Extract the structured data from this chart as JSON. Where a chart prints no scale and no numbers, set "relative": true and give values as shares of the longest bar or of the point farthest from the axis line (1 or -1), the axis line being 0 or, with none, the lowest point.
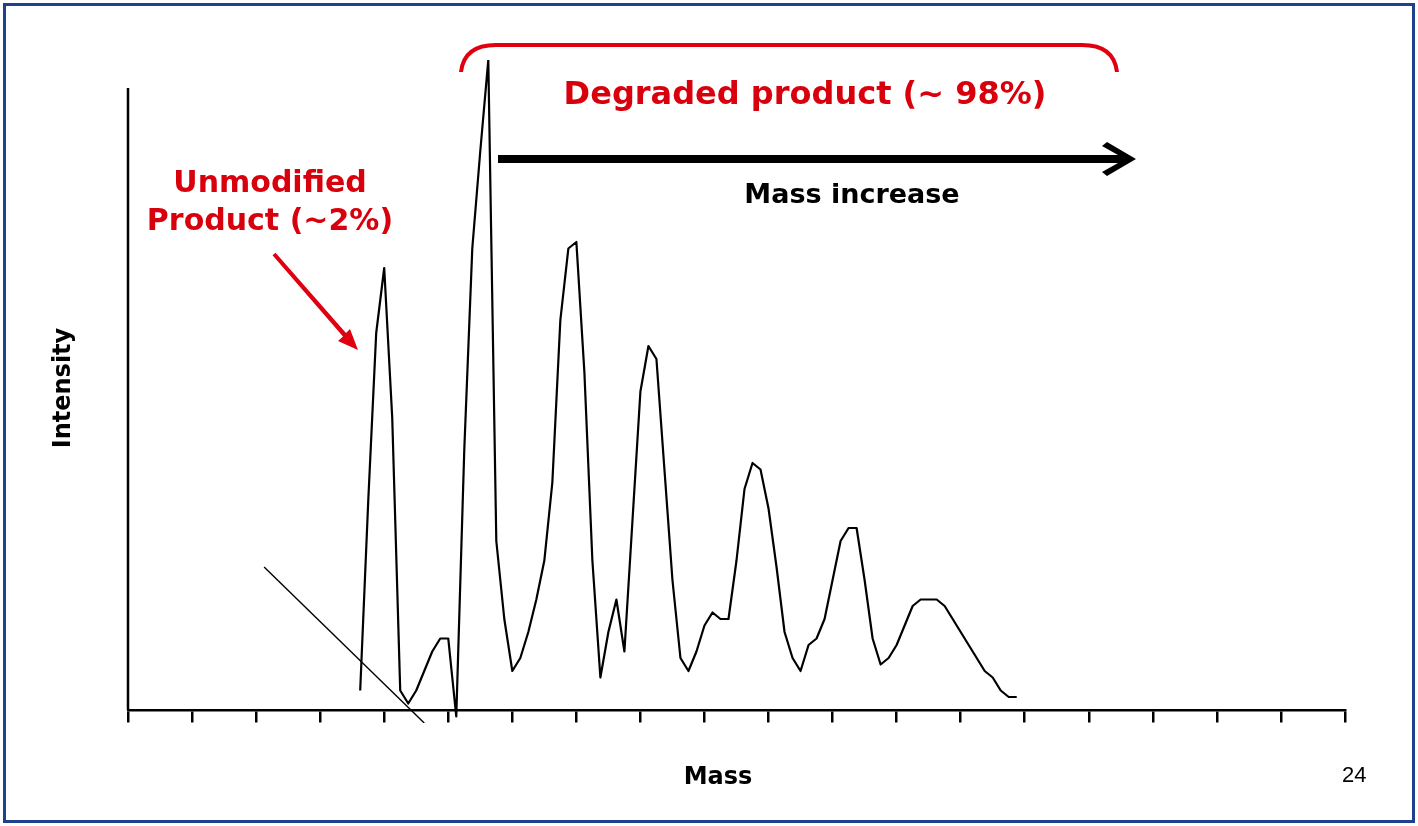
{
  "chart_data": {
    "type": "line",
    "relative": true,
    "tick_labels": false,
    "marker": "none",
    "line_style": "solid",
    "legend": false,
    "xlabel": "Mass",
    "ylabel": "Intensity",
    "annotations": [
      "Unmodified Product (~2%)",
      "Degraded product (~ 98%)",
      "Mass increase",
      "24"
    ],
    "categories": [
      null,
      null,
      null,
      null,
      null,
      null,
      null,
      null,
      null,
      null,
      null,
      null,
      null,
      null,
      null,
      null,
      null,
      null,
      null,
      null,
      null,
      null,
      null,
      null,
      null,
      null,
      null,
      null,
      null,
      null,
      null,
      null,
      null,
      null,
      null,
      null,
      null,
      null,
      null,
      null,
      null,
      null,
      null,
      null,
      null,
      null,
      null,
      null,
      null,
      null,
      null,
      null,
      null,
      null,
      null,
      null,
      null,
      null,
      null,
      null,
      null,
      null,
      null,
      null,
      null,
      null,
      null,
      null,
      null,
      null,
      null,
      null,
      null,
      null,
      null,
      null,
      null,
      null,
      null,
      null,
      null,
      null,
      null,
      null,
      null,
      null,
      null,
      null,
      null,
      null,
      null,
      null,
      null,
      null,
      null,
      null,
      null,
      null,
      null,
      null,
      null,
      null,
      null,
      null,
      null,
      null,
      null,
      null,
      null,
      null,
      null,
      null,
      null,
      null,
      null,
      null,
      null,
      null,
      null,
      null,
      null,
      null,
      null,
      null,
      null,
      null,
      null,
      null,
      null,
      null,
      null,
      null,
      null,
      null,
      null,
      null,
      null,
      null,
      null,
      null,
      null,
      null,
      null,
      null,
      null,
      null,
      null,
      null,
      null,
      null,
      null,
      null,
      null
    ],
    "series": [
      {
        "color": "#000000",
        "values": [
          null,
          null,
          null,
          null,
          null,
          null,
          null,
          null,
          null,
          null,
          null,
          null,
          null,
          null,
          null,
          null,
          null,
          null,
          null,
          null,
          null,
          null,
          null,
          null,
          null,
          null,
          null,
          null,
          null,
          0.03,
          0.32,
          0.58,
          0.68,
          0.45,
          0.03,
          0.01,
          0.03,
          0.06,
          0.09,
          0.11,
          0.11,
          -0.01,
          0.4,
          0.71,
          0.86,
          1,
          0.26,
          0.14,
          0.06,
          0.08,
          0.12,
          0.17,
          0.23,
          0.35,
          0.6,
          0.71,
          0.72,
          0.52,
          0.23,
          0.05,
          0.12,
          0.17,
          0.09,
          0.29,
          0.49,
          0.56,
          0.54,
          0.37,
          0.2,
          0.08,
          0.06,
          0.09,
          0.13,
          0.15,
          0.14,
          0.14,
          0.23,
          0.34,
          0.38,
          0.37,
          0.31,
          0.22,
          0.12,
          0.08,
          0.06,
          0.1,
          0.11,
          0.14,
          0.2,
          0.26,
          0.28,
          0.28,
          0.2,
          0.11,
          0.07,
          0.08,
          0.1,
          0.13,
          0.16,
          0.17,
          0.17,
          0.17,
          0.16,
          0.14,
          0.12,
          0.1,
          0.08,
          0.06,
          0.05,
          0.03,
          0.02,
          0.02,
          null,
          null,
          null,
          null,
          null,
          null,
          null,
          null,
          null,
          null,
          null,
          null,
          null,
          null,
          null,
          null,
          null,
          null,
          null,
          null,
          null,
          null,
          null,
          null,
          null,
          null,
          null,
          null,
          null,
          null,
          null,
          null,
          null,
          null,
          null,
          null,
          null,
          null,
          null,
          null,
          null
        ]
      },
      {
        "type": "line",
        "color": "#000000",
        "values": [
          null,
          null,
          null,
          null,
          null,
          null,
          null,
          null,
          null,
          null,
          null,
          null,
          null,
          null,
          null,
          null,
          null,
          0.22,
          null,
          null,
          null,
          null,
          null,
          null,
          null,
          null,
          null,
          null,
          null,
          null,
          null,
          null,
          null,
          null,
          null,
          null,
          null,
          -0.02,
          null,
          null,
          null,
          null,
          null,
          null,
          null,
          null,
          null,
          null,
          null,
          null,
          null,
          null,
          null,
          null,
          null,
          null,
          null,
          null,
          null,
          null,
          null,
          null,
          null,
          null,
          null,
          null,
          null,
          null,
          null,
          null,
          null,
          null,
          null,
          null,
          null,
          null,
          null,
          null,
          null,
          null,
          null,
          null,
          null,
          null,
          null,
          null,
          null,
          null,
          null,
          null,
          null,
          null,
          null,
          null,
          null,
          null,
          null,
          null,
          null,
          null,
          null,
          null,
          null,
          null,
          null,
          null,
          null,
          null,
          null,
          null,
          null,
          null,
          null,
          null,
          null,
          null,
          null,
          null,
          null,
          null,
          null,
          null,
          null,
          null,
          null,
          null,
          null,
          null,
          null,
          null,
          null,
          null,
          null,
          null,
          null,
          null,
          null,
          null,
          null,
          null,
          null,
          null,
          null,
          null,
          null,
          null,
          null,
          null,
          null,
          null,
          null,
          null,
          null
        ]
      }
    ]
  }
}
